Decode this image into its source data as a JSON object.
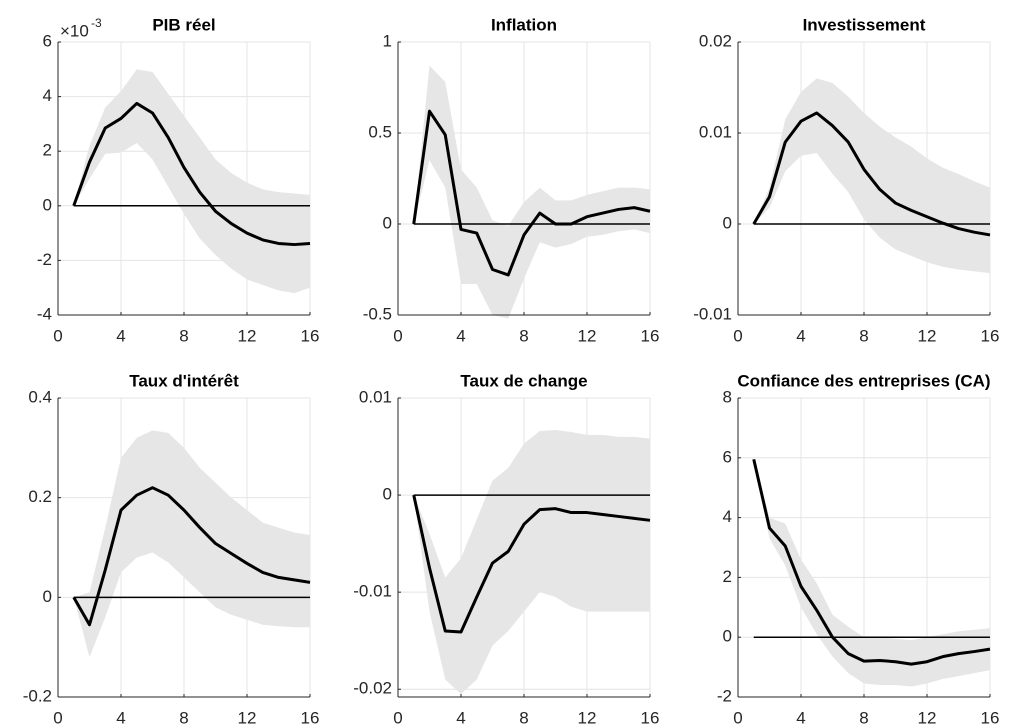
{
  "chart_data": [
    {
      "type": "line",
      "title": "PIB réel",
      "y_multiplier": {
        "base": "×10",
        "exponent": "-3"
      },
      "x": [
        1,
        2,
        3,
        4,
        5,
        6,
        7,
        8,
        9,
        10,
        11,
        12,
        13,
        14,
        15,
        16
      ],
      "values": [
        0,
        1.6,
        2.85,
        3.2,
        3.75,
        3.4,
        2.5,
        1.4,
        0.5,
        -0.2,
        -0.65,
        -1.0,
        -1.25,
        -1.38,
        -1.42,
        -1.38
      ],
      "band": {
        "upper": [
          0,
          2.2,
          3.6,
          4.2,
          5.0,
          4.9,
          4.1,
          3.3,
          2.5,
          1.7,
          1.2,
          0.85,
          0.6,
          0.5,
          0.45,
          0.4
        ],
        "lower": [
          0,
          1.0,
          1.9,
          1.95,
          2.3,
          1.7,
          0.7,
          -0.3,
          -1.2,
          -1.8,
          -2.3,
          -2.7,
          -2.9,
          -3.1,
          -3.2,
          -3.0
        ],
        "color": "#e6e6e6"
      },
      "color": "#000000",
      "reference_line": 0,
      "xlim": [
        0,
        16
      ],
      "xticks": [
        0,
        4,
        8,
        12,
        16
      ],
      "ylim": [
        -4,
        6
      ],
      "yticks": [
        -4,
        -2,
        0,
        2,
        4,
        6
      ],
      "grid": true
    },
    {
      "type": "line",
      "title": "Inflation",
      "x": [
        1,
        2,
        3,
        4,
        5,
        6,
        7,
        8,
        9,
        10,
        11,
        12,
        13,
        14,
        15,
        16
      ],
      "values": [
        0,
        0.62,
        0.49,
        -0.03,
        -0.05,
        -0.25,
        -0.28,
        -0.06,
        0.06,
        0.0,
        0.0,
        0.04,
        0.06,
        0.08,
        0.09,
        0.07
      ],
      "band": {
        "upper": [
          0,
          0.87,
          0.78,
          0.3,
          0.2,
          0.02,
          -0.01,
          0.12,
          0.2,
          0.13,
          0.13,
          0.16,
          0.18,
          0.2,
          0.2,
          0.19
        ],
        "lower": [
          0,
          0.35,
          0.2,
          -0.33,
          -0.33,
          -0.5,
          -0.52,
          -0.3,
          -0.1,
          -0.13,
          -0.11,
          -0.07,
          -0.06,
          -0.04,
          -0.03,
          -0.05
        ],
        "color": "#e6e6e6"
      },
      "color": "#000000",
      "reference_line": 0,
      "xlim": [
        0,
        16
      ],
      "xticks": [
        0,
        4,
        8,
        12,
        16
      ],
      "ylim": [
        -0.5,
        1
      ],
      "yticks": [
        -0.5,
        0,
        0.5,
        1
      ],
      "grid": true
    },
    {
      "type": "line",
      "title": "Investissement",
      "x": [
        1,
        2,
        3,
        4,
        5,
        6,
        7,
        8,
        9,
        10,
        11,
        12,
        13,
        14,
        15,
        16
      ],
      "values": [
        0,
        0.003,
        0.009,
        0.0113,
        0.0122,
        0.0108,
        0.009,
        0.006,
        0.0038,
        0.0023,
        0.0015,
        0.0008,
        0.0001,
        -0.0005,
        -0.0009,
        -0.0012
      ],
      "band": {
        "upper": [
          0,
          0.004,
          0.0115,
          0.0145,
          0.016,
          0.0155,
          0.014,
          0.0122,
          0.0107,
          0.0095,
          0.0085,
          0.0072,
          0.0062,
          0.0055,
          0.0047,
          0.004
        ],
        "lower": [
          0,
          0.0018,
          0.0058,
          0.0075,
          0.0078,
          0.0055,
          0.0035,
          0.0005,
          -0.0015,
          -0.0028,
          -0.0035,
          -0.0042,
          -0.0047,
          -0.005,
          -0.0052,
          -0.0054
        ],
        "color": "#e6e6e6"
      },
      "color": "#000000",
      "reference_line": 0,
      "xlim": [
        0,
        16
      ],
      "xticks": [
        0,
        4,
        8,
        12,
        16
      ],
      "ylim": [
        -0.01,
        0.02
      ],
      "yticks": [
        -0.01,
        0,
        0.01,
        0.02
      ],
      "grid": true
    },
    {
      "type": "line",
      "title": "Taux d'intérêt",
      "x": [
        1,
        2,
        3,
        4,
        5,
        6,
        7,
        8,
        9,
        10,
        11,
        12,
        13,
        14,
        15,
        16
      ],
      "values": [
        0,
        -0.055,
        0.055,
        0.175,
        0.205,
        0.22,
        0.205,
        0.175,
        0.14,
        0.108,
        0.088,
        0.068,
        0.05,
        0.04,
        0.035,
        0.03
      ],
      "band": {
        "upper": [
          0,
          0.01,
          0.14,
          0.28,
          0.32,
          0.335,
          0.33,
          0.3,
          0.26,
          0.23,
          0.2,
          0.175,
          0.15,
          0.14,
          0.13,
          0.125
        ],
        "lower": [
          0,
          -0.12,
          -0.04,
          0.05,
          0.08,
          0.09,
          0.07,
          0.04,
          0.01,
          -0.02,
          -0.035,
          -0.045,
          -0.055,
          -0.058,
          -0.06,
          -0.06
        ],
        "color": "#e6e6e6"
      },
      "color": "#000000",
      "reference_line": 0,
      "xlim": [
        0,
        16
      ],
      "xticks": [
        0,
        4,
        8,
        12,
        16
      ],
      "ylim": [
        -0.2,
        0.4
      ],
      "yticks": [
        -0.2,
        0,
        0.2,
        0.4
      ],
      "grid": true
    },
    {
      "type": "line",
      "title": "Taux de change",
      "x": [
        1,
        2,
        3,
        4,
        5,
        6,
        7,
        8,
        9,
        10,
        11,
        12,
        13,
        14,
        15,
        16
      ],
      "values": [
        0,
        -0.0075,
        -0.014,
        -0.0141,
        -0.0105,
        -0.007,
        -0.0058,
        -0.003,
        -0.0015,
        -0.0014,
        -0.0018,
        -0.0018,
        -0.002,
        -0.0022,
        -0.0024,
        -0.0026
      ],
      "band": {
        "upper": [
          0,
          -0.004,
          -0.0085,
          -0.0065,
          -0.0025,
          0.0015,
          0.0028,
          0.0053,
          0.0066,
          0.0067,
          0.0065,
          0.0062,
          0.0062,
          0.006,
          0.006,
          0.0058
        ],
        "lower": [
          0,
          -0.012,
          -0.019,
          -0.0205,
          -0.019,
          -0.0155,
          -0.014,
          -0.012,
          -0.01,
          -0.0105,
          -0.0115,
          -0.012,
          -0.012,
          -0.012,
          -0.012,
          -0.012
        ],
        "color": "#e6e6e6"
      },
      "color": "#000000",
      "reference_line": 0,
      "xlim": [
        0,
        16
      ],
      "xticks": [
        0,
        4,
        8,
        12,
        16
      ],
      "ylim": [
        -0.0208,
        0.01
      ],
      "yticks": [
        -0.02,
        -0.01,
        0,
        0.01
      ],
      "grid": true
    },
    {
      "type": "line",
      "title": "Confiance des entreprises (CA)",
      "x": [
        1,
        2,
        3,
        4,
        5,
        6,
        7,
        8,
        9,
        10,
        11,
        12,
        13,
        14,
        15,
        16
      ],
      "values": [
        5.95,
        3.65,
        3.05,
        1.7,
        0.9,
        0.0,
        -0.55,
        -0.8,
        -0.78,
        -0.82,
        -0.9,
        -0.82,
        -0.65,
        -0.55,
        -0.48,
        -0.4
      ],
      "band": {
        "upper": [
          5.95,
          4.0,
          3.8,
          2.6,
          1.8,
          0.75,
          0.35,
          0.0,
          0.0,
          -0.05,
          -0.1,
          0.0,
          0.1,
          0.2,
          0.25,
          0.3
        ],
        "lower": [
          5.95,
          3.3,
          2.4,
          1.0,
          0.1,
          -0.65,
          -1.2,
          -1.55,
          -1.6,
          -1.6,
          -1.65,
          -1.55,
          -1.4,
          -1.3,
          -1.2,
          -1.1
        ],
        "color": "#e6e6e6"
      },
      "color": "#000000",
      "reference_line": 0,
      "xlim": [
        0,
        16
      ],
      "xticks": [
        0,
        4,
        8,
        12,
        16
      ],
      "ylim": [
        -2,
        8
      ],
      "yticks": [
        -2,
        0,
        2,
        4,
        6,
        8
      ],
      "grid": true
    }
  ]
}
